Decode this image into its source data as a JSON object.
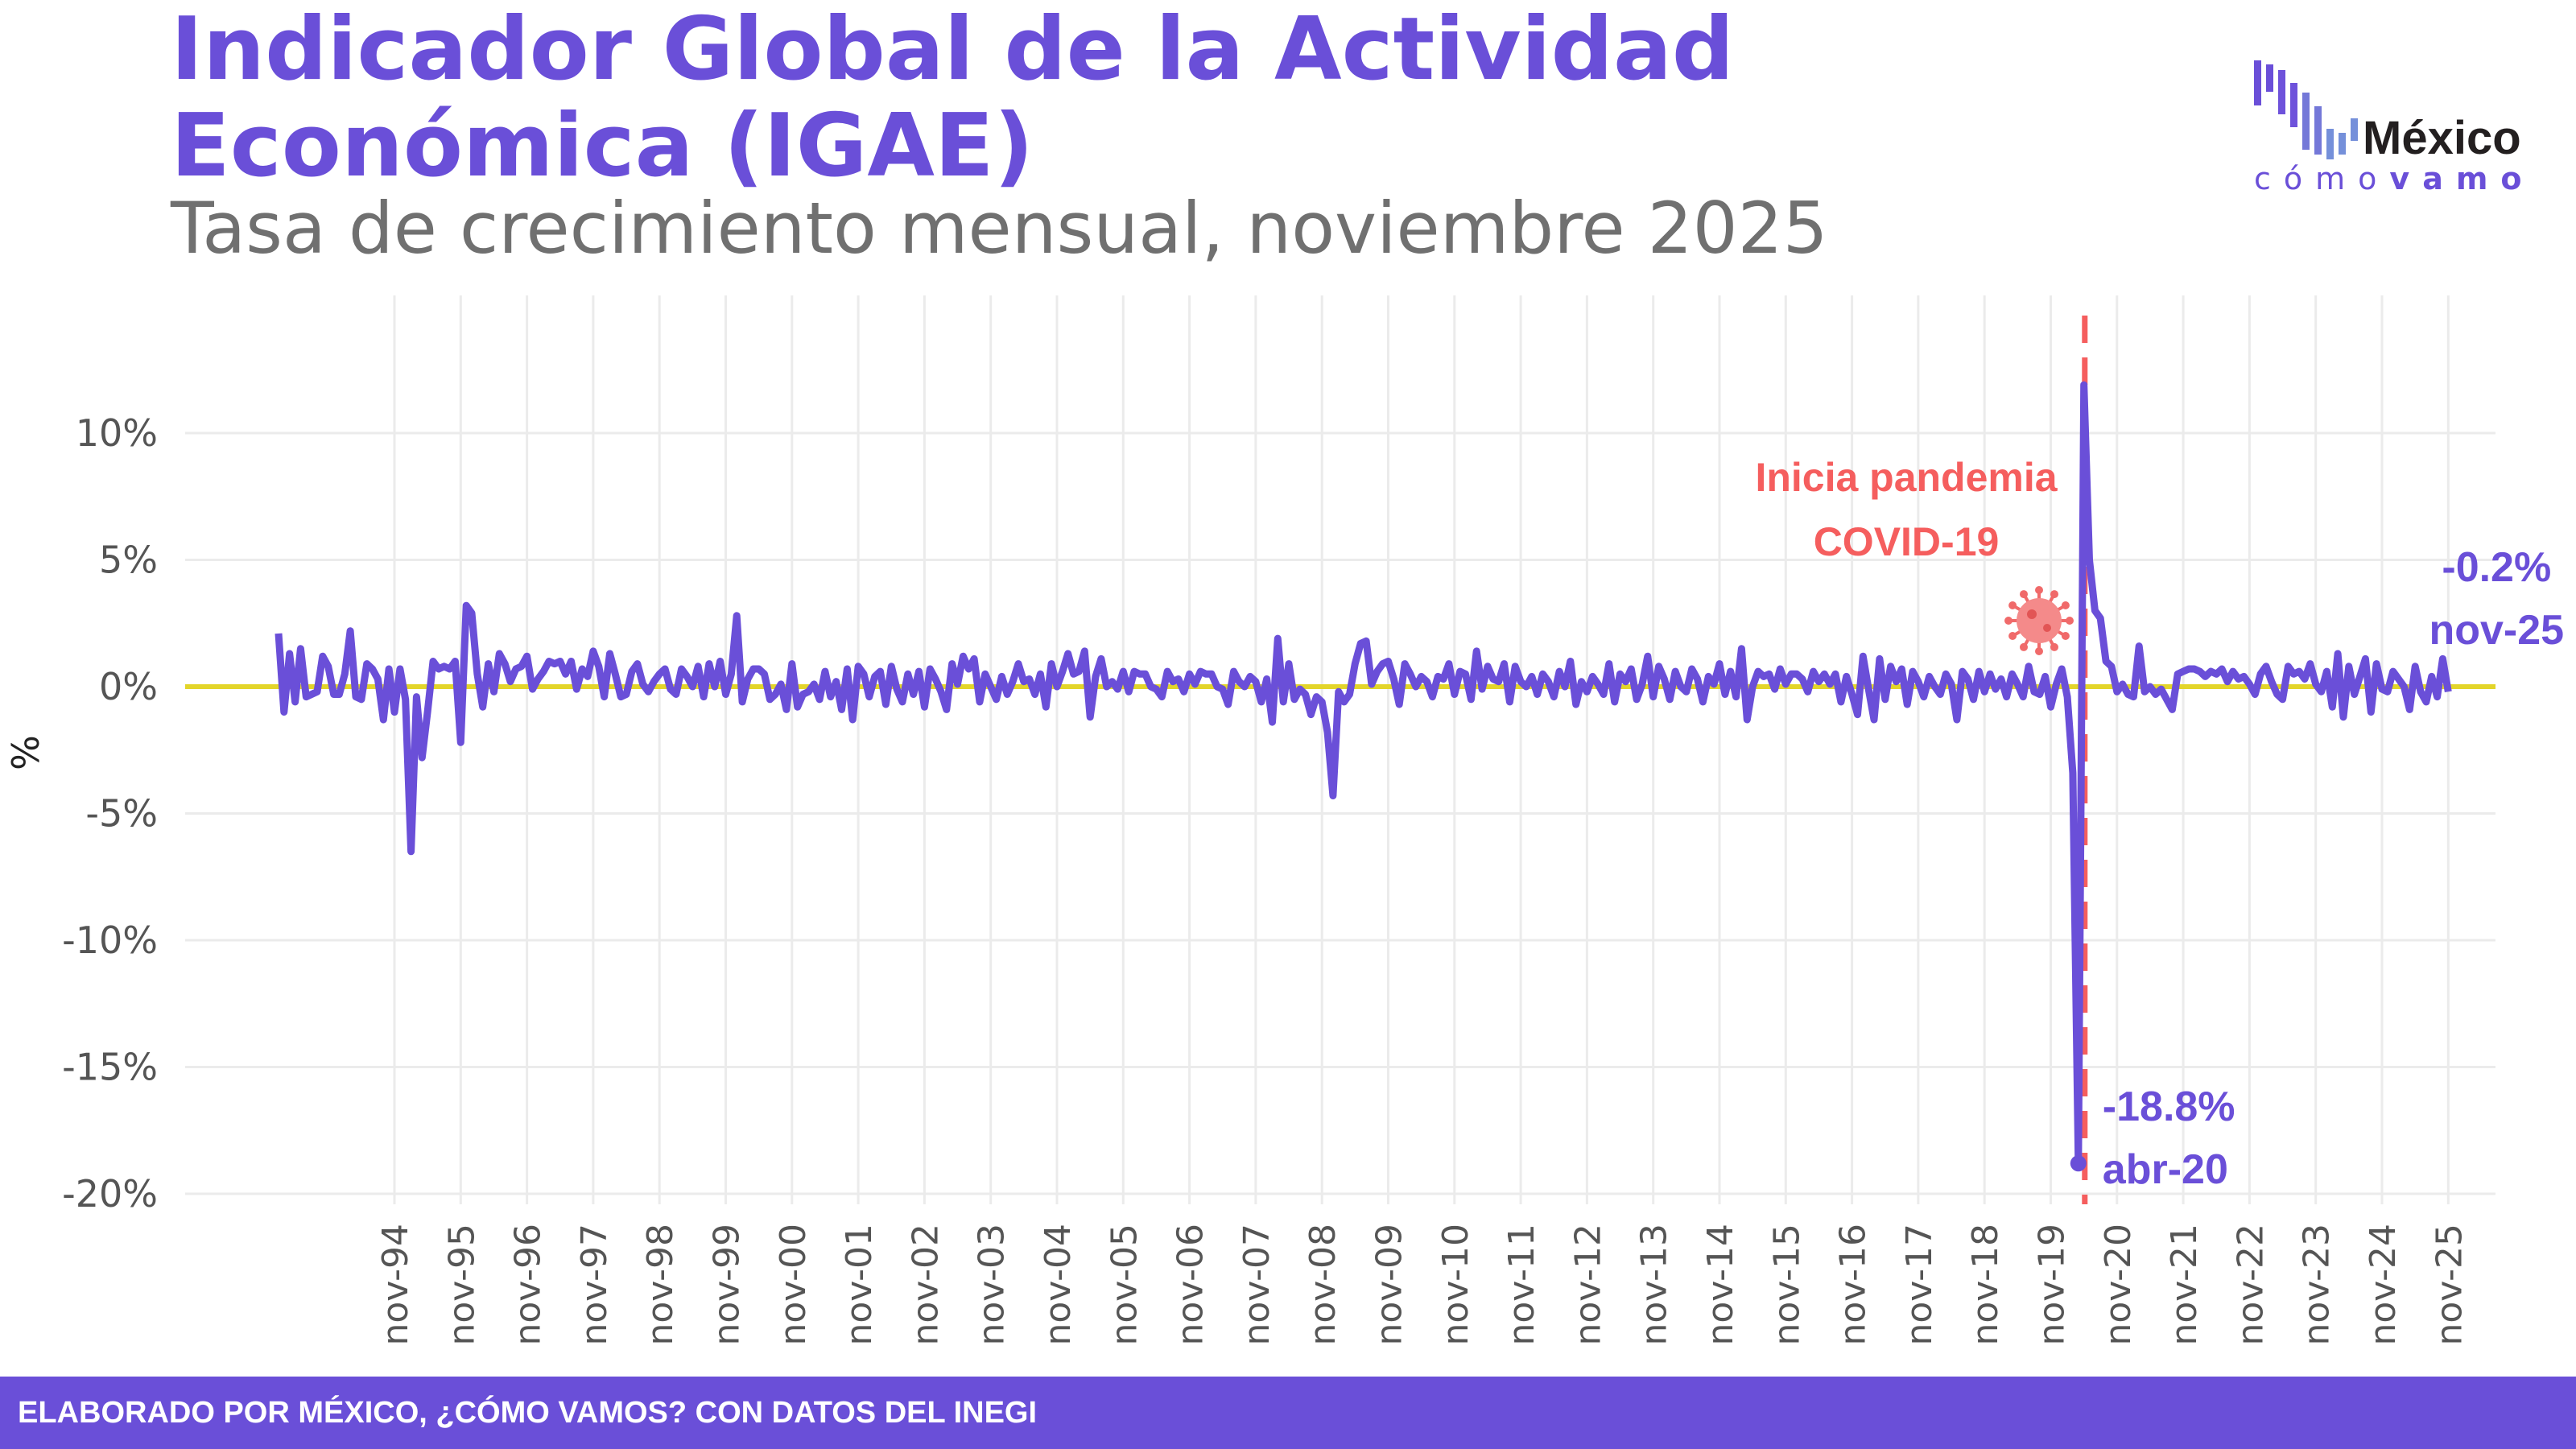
{
  "title_line1": "Indicador Global de la Actividad",
  "title_line2": "Económica (IGAE)",
  "subtitle": "Tasa de crecimiento mensual, noviembre 2025",
  "logo": {
    "word1": "México",
    "word2a": "cómo",
    "word2b": "vamos"
  },
  "footer": "ELABORADO POR MÉXICO, ¿CÓMO VAMOS? CON DATOS DEL INEGI",
  "colors": {
    "series": "#6a4fd8",
    "zero_line": "#e3d52a",
    "pandemic": "#f55e5e",
    "grid": "#ebebeb",
    "axis_text": "#555555"
  },
  "chart_data": {
    "type": "line",
    "title": "Indicador Global de la Actividad Económica (IGAE)",
    "subtitle": "Tasa de crecimiento mensual, noviembre 2025",
    "ylabel": "%",
    "xlabel": "",
    "ylim": [
      -20,
      12
    ],
    "yticks": [
      10,
      5,
      0,
      -5,
      -10,
      -15,
      -20
    ],
    "ytick_labels": [
      "10%",
      "5%",
      "0%",
      "-5%",
      "-10%",
      "-15%",
      "-20%"
    ],
    "xtick_labels": [
      "nov-94",
      "nov-95",
      "nov-96",
      "nov-97",
      "nov-98",
      "nov-99",
      "nov-00",
      "nov-01",
      "nov-02",
      "nov-03",
      "nov-04",
      "nov-05",
      "nov-06",
      "nov-07",
      "nov-08",
      "nov-09",
      "nov-10",
      "nov-11",
      "nov-12",
      "nov-13",
      "nov-14",
      "nov-15",
      "nov-16",
      "nov-17",
      "nov-18",
      "nov-19",
      "nov-20",
      "nov-21",
      "nov-22",
      "nov-23",
      "nov-24",
      "nov-25"
    ],
    "grid": true,
    "reference_line": 0,
    "series_by_year": [
      {
        "year": 1993,
        "first_month": 2,
        "values": [
          2.1,
          -1.0,
          1.3,
          -0.6,
          1.5,
          -0.4,
          -0.3,
          -0.2,
          1.2,
          0.8,
          -0.3
        ]
      },
      {
        "year": 1994,
        "first_month": 1,
        "values": [
          -0.3,
          0.5,
          2.2,
          -0.4,
          -0.5,
          0.9,
          0.7,
          0.3,
          -1.3,
          0.7,
          -1.0,
          0.7
        ]
      },
      {
        "year": 1995,
        "first_month": 1,
        "values": [
          -0.5,
          -6.5,
          -0.4,
          -2.8,
          -1.0,
          1.0,
          0.7,
          0.8,
          0.7,
          1.0,
          -2.2,
          3.2
        ]
      },
      {
        "year": 1996,
        "first_month": 1,
        "values": [
          2.9,
          0.5,
          -0.8,
          0.9,
          -0.2,
          1.3,
          0.9,
          0.2,
          0.7,
          0.8,
          1.2,
          -0.1
        ]
      },
      {
        "year": 1997,
        "first_month": 1,
        "values": [
          0.3,
          0.6,
          1.0,
          0.9,
          1.0,
          0.5,
          1.0,
          -0.1,
          0.7,
          0.4,
          1.4,
          0.8
        ]
      },
      {
        "year": 1998,
        "first_month": 1,
        "values": [
          -0.4,
          1.3,
          0.5,
          -0.4,
          -0.3,
          0.6,
          0.9,
          0.1,
          -0.2,
          0.2,
          0.5,
          0.7
        ]
      },
      {
        "year": 1999,
        "first_month": 1,
        "values": [
          -0.1,
          -0.3,
          0.7,
          0.4,
          0.0,
          0.8,
          -0.4,
          0.9,
          0.0,
          1.0,
          -0.3,
          0.5
        ]
      },
      {
        "year": 2000,
        "first_month": 1,
        "values": [
          2.8,
          -0.6,
          0.3,
          0.7,
          0.7,
          0.5,
          -0.5,
          -0.3,
          0.1,
          -0.9,
          0.9,
          -0.8
        ]
      },
      {
        "year": 2001,
        "first_month": 1,
        "values": [
          -0.3,
          -0.2,
          0.1,
          -0.5,
          0.6,
          -0.4,
          0.2,
          -0.9,
          0.7,
          -1.3,
          0.8,
          0.5
        ]
      },
      {
        "year": 2002,
        "first_month": 1,
        "values": [
          -0.4,
          0.4,
          0.6,
          -0.7,
          0.8,
          -0.1,
          -0.6,
          0.5,
          -0.3,
          0.6,
          -0.8,
          0.7
        ]
      },
      {
        "year": 2003,
        "first_month": 1,
        "values": [
          0.3,
          -0.2,
          -0.9,
          0.9,
          0.1,
          1.2,
          0.7,
          1.1,
          -0.6,
          0.5,
          0.0,
          -0.5
        ]
      },
      {
        "year": 2004,
        "first_month": 1,
        "values": [
          0.4,
          -0.3,
          0.2,
          0.9,
          0.2,
          0.3,
          -0.3,
          0.5,
          -0.8,
          0.9,
          0.0,
          0.6
        ]
      },
      {
        "year": 2005,
        "first_month": 1,
        "values": [
          1.3,
          0.5,
          0.6,
          1.4,
          -1.2,
          0.4,
          1.1,
          0.0,
          0.2,
          -0.1,
          0.6,
          -0.2
        ]
      },
      {
        "year": 2006,
        "first_month": 1,
        "values": [
          0.6,
          0.5,
          0.5,
          0.0,
          -0.1,
          -0.4,
          0.6,
          0.2,
          0.3,
          -0.2,
          0.5,
          0.1
        ]
      },
      {
        "year": 2007,
        "first_month": 1,
        "values": [
          0.6,
          0.5,
          0.5,
          0.0,
          -0.1,
          -0.7,
          0.6,
          0.2,
          0.0,
          0.4,
          0.2,
          -0.6
        ]
      },
      {
        "year": 2008,
        "first_month": 1,
        "values": [
          0.3,
          -1.4,
          1.9,
          -0.6,
          0.9,
          -0.5,
          -0.1,
          -0.3,
          -1.1,
          -0.4,
          -0.6,
          -1.8
        ]
      },
      {
        "year": 2009,
        "first_month": 1,
        "values": [
          -4.3,
          -0.2,
          -0.6,
          -0.3,
          0.9,
          1.7,
          1.8,
          0.1,
          0.6,
          0.9,
          1.0,
          0.3
        ]
      },
      {
        "year": 2010,
        "first_month": 1,
        "values": [
          -0.7,
          0.9,
          0.5,
          0.0,
          0.4,
          0.2,
          -0.4,
          0.4,
          0.3,
          0.9,
          -0.3,
          0.6
        ]
      },
      {
        "year": 2011,
        "first_month": 1,
        "values": [
          0.5,
          -0.5,
          1.4,
          -0.1,
          0.8,
          0.3,
          0.2,
          0.9,
          -0.6,
          0.8,
          0.2,
          0.0
        ]
      },
      {
        "year": 2012,
        "first_month": 1,
        "values": [
          0.4,
          -0.3,
          0.5,
          0.2,
          -0.4,
          0.6,
          0.0,
          1.0,
          -0.7,
          0.2,
          -0.2,
          0.4
        ]
      },
      {
        "year": 2013,
        "first_month": 1,
        "values": [
          0.1,
          -0.3,
          0.9,
          -0.6,
          0.5,
          0.2,
          0.7,
          -0.5,
          0.1,
          1.2,
          -0.4,
          0.8
        ]
      },
      {
        "year": 2014,
        "first_month": 1,
        "values": [
          0.3,
          -0.5,
          0.6,
          0.0,
          -0.2,
          0.7,
          0.3,
          -0.6,
          0.4,
          0.1,
          0.9,
          -0.3
        ]
      },
      {
        "year": 2015,
        "first_month": 1,
        "values": [
          0.6,
          -0.4,
          1.5,
          -1.3,
          0.0,
          0.6,
          0.4,
          0.5,
          -0.1,
          0.7,
          0.1,
          0.5
        ]
      },
      {
        "year": 2016,
        "first_month": 1,
        "values": [
          0.5,
          0.3,
          -0.2,
          0.6,
          0.2,
          0.5,
          0.1,
          0.5,
          -0.6,
          0.4,
          -0.3,
          -1.1
        ]
      },
      {
        "year": 2017,
        "first_month": 1,
        "values": [
          1.2,
          -0.1,
          -1.3,
          1.1,
          -0.5,
          0.8,
          0.2,
          0.7,
          -0.7,
          0.6,
          0.2,
          -0.4
        ]
      },
      {
        "year": 2018,
        "first_month": 1,
        "values": [
          0.4,
          0.0,
          -0.3,
          0.5,
          0.1,
          -1.3,
          0.6,
          0.3,
          -0.5,
          0.6,
          -0.2,
          0.5
        ]
      },
      {
        "year": 2019,
        "first_month": 1,
        "values": [
          -0.1,
          0.3,
          -0.4,
          0.5,
          0.1,
          -0.4,
          0.8,
          -0.2,
          -0.3,
          0.4,
          -0.8,
          0.1
        ]
      },
      {
        "year": 2020,
        "first_month": 1,
        "values": [
          0.7,
          -0.4,
          -3.4,
          -18.8,
          11.9,
          5.0,
          3.0,
          2.7,
          1.0,
          0.8,
          -0.2,
          0.1
        ]
      },
      {
        "year": 2021,
        "first_month": 1,
        "values": [
          -0.3,
          -0.4,
          1.6,
          -0.2,
          0.0,
          -0.3,
          -0.1,
          -0.5,
          -0.9,
          0.5,
          0.6,
          0.7
        ]
      },
      {
        "year": 2022,
        "first_month": 1,
        "values": [
          0.7,
          0.6,
          0.4,
          0.6,
          0.5,
          0.7,
          0.2,
          0.6,
          0.3,
          0.4,
          0.1,
          -0.3
        ]
      },
      {
        "year": 2023,
        "first_month": 1,
        "values": [
          0.5,
          0.8,
          0.2,
          -0.3,
          -0.5,
          0.8,
          0.5,
          0.6,
          0.3,
          0.9,
          0.1,
          -0.2
        ]
      },
      {
        "year": 2024,
        "first_month": 1,
        "values": [
          0.6,
          -0.8,
          1.3,
          -1.2,
          0.8,
          -0.3,
          0.4,
          1.1,
          -1.0,
          0.9,
          -0.1,
          -0.2
        ]
      },
      {
        "year": 2025,
        "first_month": 1,
        "values": [
          0.6,
          0.3,
          0.0,
          -0.9,
          0.8,
          -0.2,
          -0.6,
          0.4,
          -0.4,
          1.1,
          -0.2
        ]
      }
    ],
    "annotations": [
      {
        "label_value": "-18.8%",
        "label_date": "abr-20",
        "value": -18.8
      },
      {
        "label_value": "-0.2%",
        "label_date": "nov-25",
        "value": -0.2
      },
      {
        "text_line1": "Inicia pandemia",
        "text_line2": "COVID-19",
        "type": "vertical-dashed-line",
        "icon": "virus-icon"
      }
    ]
  }
}
